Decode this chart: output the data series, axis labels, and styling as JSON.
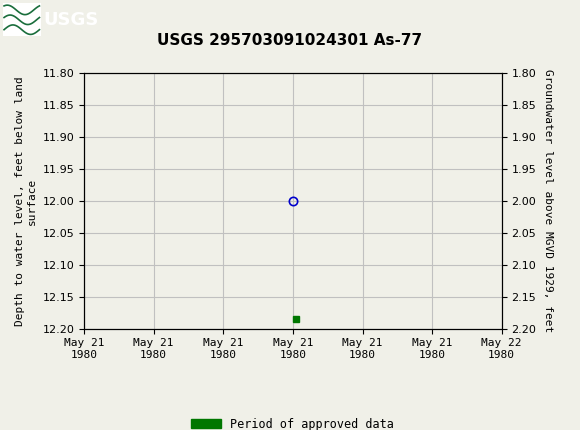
{
  "title": "USGS 295703091024301 As-77",
  "left_ylabel": "Depth to water level, feet below land\nsurface",
  "right_ylabel": "Groundwater level above MGVD 1929, feet",
  "ylim_left": [
    11.8,
    12.2
  ],
  "ylim_right": [
    1.8,
    2.2
  ],
  "left_yticks": [
    11.8,
    11.85,
    11.9,
    11.95,
    12.0,
    12.05,
    12.1,
    12.15,
    12.2
  ],
  "right_yticks": [
    2.2,
    2.15,
    2.1,
    2.05,
    2.0,
    1.95,
    1.9,
    1.85,
    1.8
  ],
  "xlim": [
    0,
    6
  ],
  "xtick_labels": [
    "May 21\n1980",
    "May 21\n1980",
    "May 21\n1980",
    "May 21\n1980",
    "May 21\n1980",
    "May 21\n1980",
    "May 22\n1980"
  ],
  "xtick_positions": [
    0,
    1,
    2,
    3,
    4,
    5,
    6
  ],
  "point_x": 3,
  "point_y": 12.0,
  "point_color": "#0000cc",
  "point_marker": "o",
  "point_markerfacecolor": "none",
  "green_square_x": 3.05,
  "green_square_y": 12.185,
  "green_square_color": "#007700",
  "grid_color": "#c0c0c0",
  "background_color": "#f0f0e8",
  "header_color": "#1a6e3c",
  "title_fontsize": 11,
  "axis_label_fontsize": 8,
  "tick_fontsize": 8,
  "legend_label": "Period of approved data",
  "legend_color": "#007700"
}
